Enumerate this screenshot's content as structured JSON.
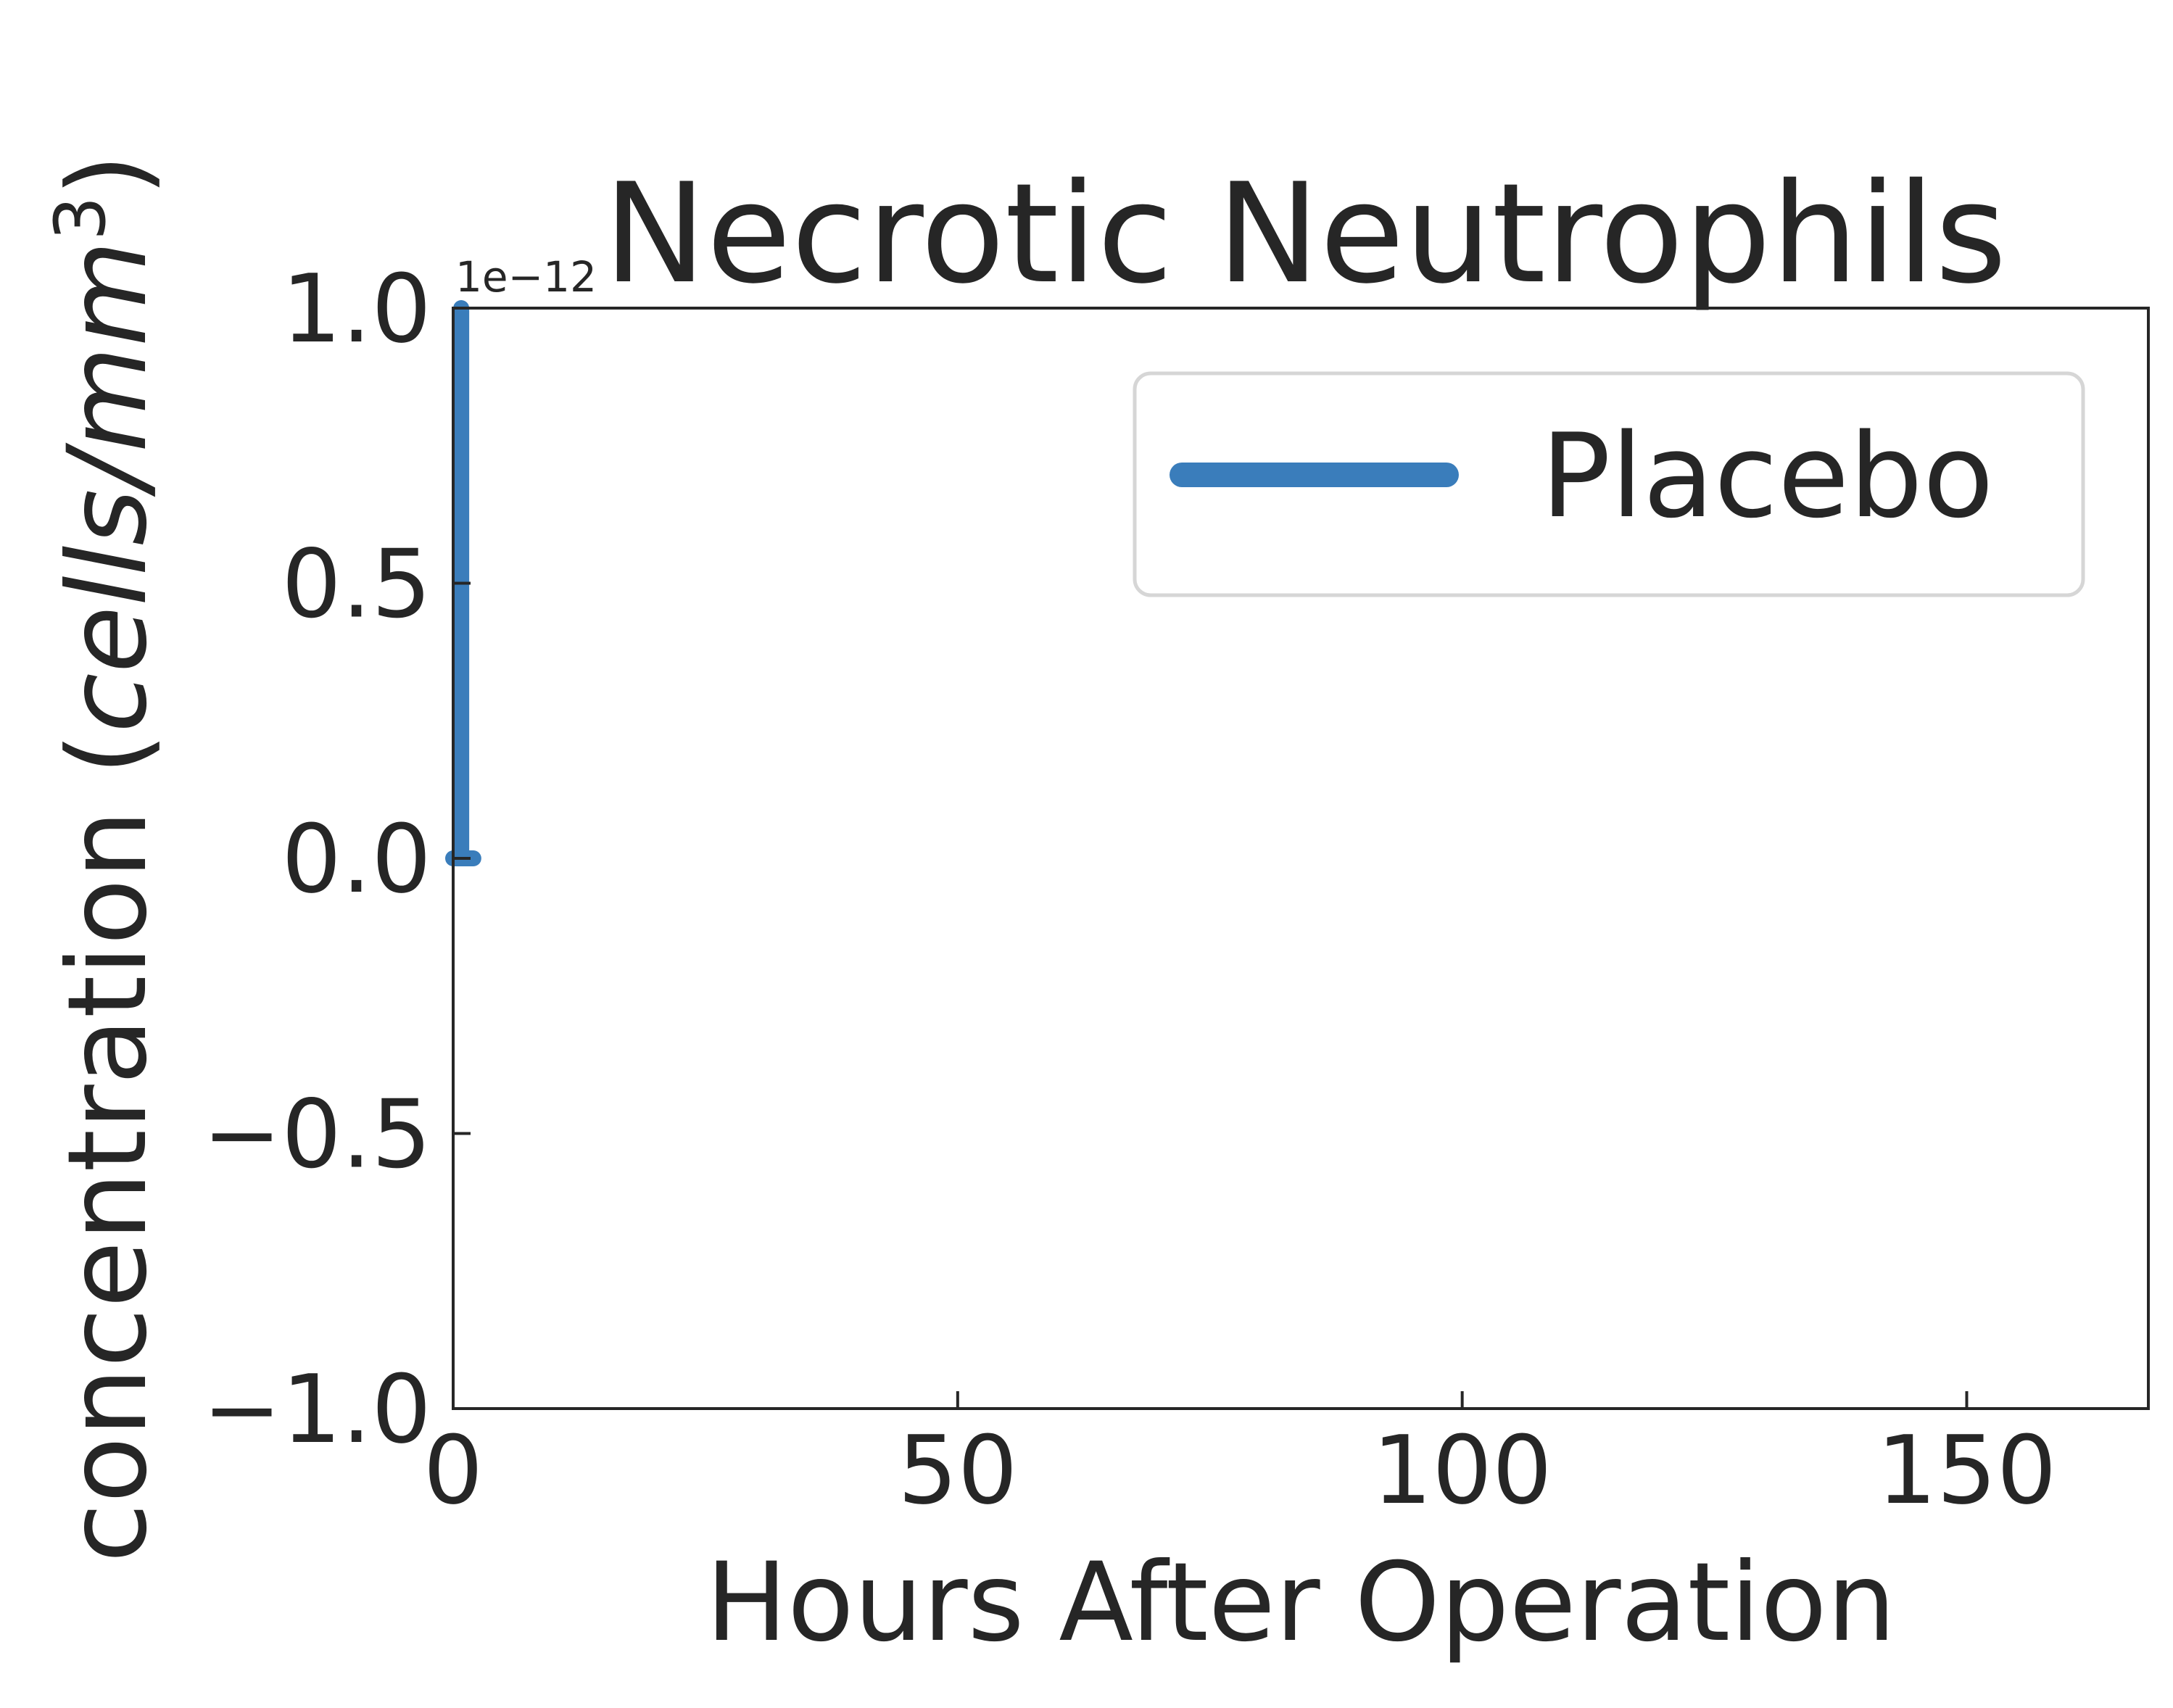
{
  "chart_data": {
    "type": "line",
    "title": "Necrotic Neutrophils",
    "xlabel": "Hours After Operation",
    "ylabel": "concentration (",
    "ylabel_italic": "cells/mm",
    "ylabel_sup": "3",
    "ylabel_close": ")",
    "y_offset_label": "1e−12",
    "xlim": [
      0,
      168
    ],
    "ylim": [
      -1.0,
      1.0
    ],
    "x_ticks": [
      0,
      50,
      100,
      150
    ],
    "x_tick_labels": [
      "0",
      "50",
      "100",
      "150"
    ],
    "y_ticks": [
      -1.0,
      -0.5,
      0.0,
      0.5,
      1.0
    ],
    "y_tick_labels": [
      "−1.0",
      "−0.5",
      "0.0",
      "0.5",
      "1.0"
    ],
    "grid": false,
    "legend_position": "top-right",
    "series": [
      {
        "name": "Placebo",
        "color": "#3a7dbb",
        "x": [
          0,
          0.5,
          1,
          1.5,
          2
        ],
        "y": [
          0,
          0,
          0,
          0,
          0
        ],
        "spike_x": 0.8,
        "spike_y": [
          0,
          1.0
        ]
      }
    ]
  }
}
